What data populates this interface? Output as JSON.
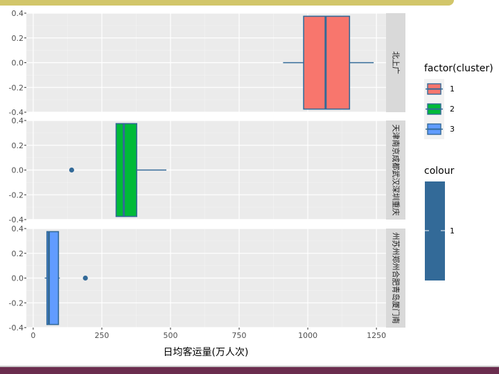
{
  "chart_data": {
    "type": "boxplot",
    "xlabel": "日均客运量(万人次)",
    "x_ticks": [
      0,
      250,
      500,
      750,
      1000,
      1250
    ],
    "xlim": [
      -25,
      1285
    ],
    "y_ticks": [
      "0.4",
      "0.2",
      "0.0",
      "-0.2",
      "-0.4"
    ],
    "ylim": [
      -0.4,
      0.4
    ],
    "grid": true,
    "panels": [
      {
        "strip": "北上广",
        "cluster": "1",
        "fill": "#f8766d",
        "whisker_low": 910,
        "q1": 985,
        "median": 1065,
        "q3": 1152,
        "whisker_high": 1240,
        "outliers": []
      },
      {
        "strip": "天津南京成都武汉深圳重庆",
        "cluster": "2",
        "fill": "#00ba38",
        "whisker_low": 302,
        "q1": 302,
        "median": 330,
        "q3": 377,
        "whisker_high": 485,
        "outliers": [
          140
        ]
      },
      {
        "strip": "州苏州郑州合肥青岛厦门南",
        "cluster": "3",
        "fill": "#619cff",
        "whisker_low": 42,
        "q1": 50,
        "median": 57,
        "q3": 92,
        "whisker_high": 97,
        "outliers": [
          190
        ]
      }
    ],
    "legend_fill": {
      "title": "factor(cluster)",
      "entries": [
        {
          "label": "1",
          "color": "#f8766d"
        },
        {
          "label": "2",
          "color": "#00ba38"
        },
        {
          "label": "3",
          "color": "#619cff"
        }
      ]
    },
    "legend_colour": {
      "title": "colour",
      "label": "1",
      "color": "#336a98"
    },
    "line_color": "#336a98"
  }
}
